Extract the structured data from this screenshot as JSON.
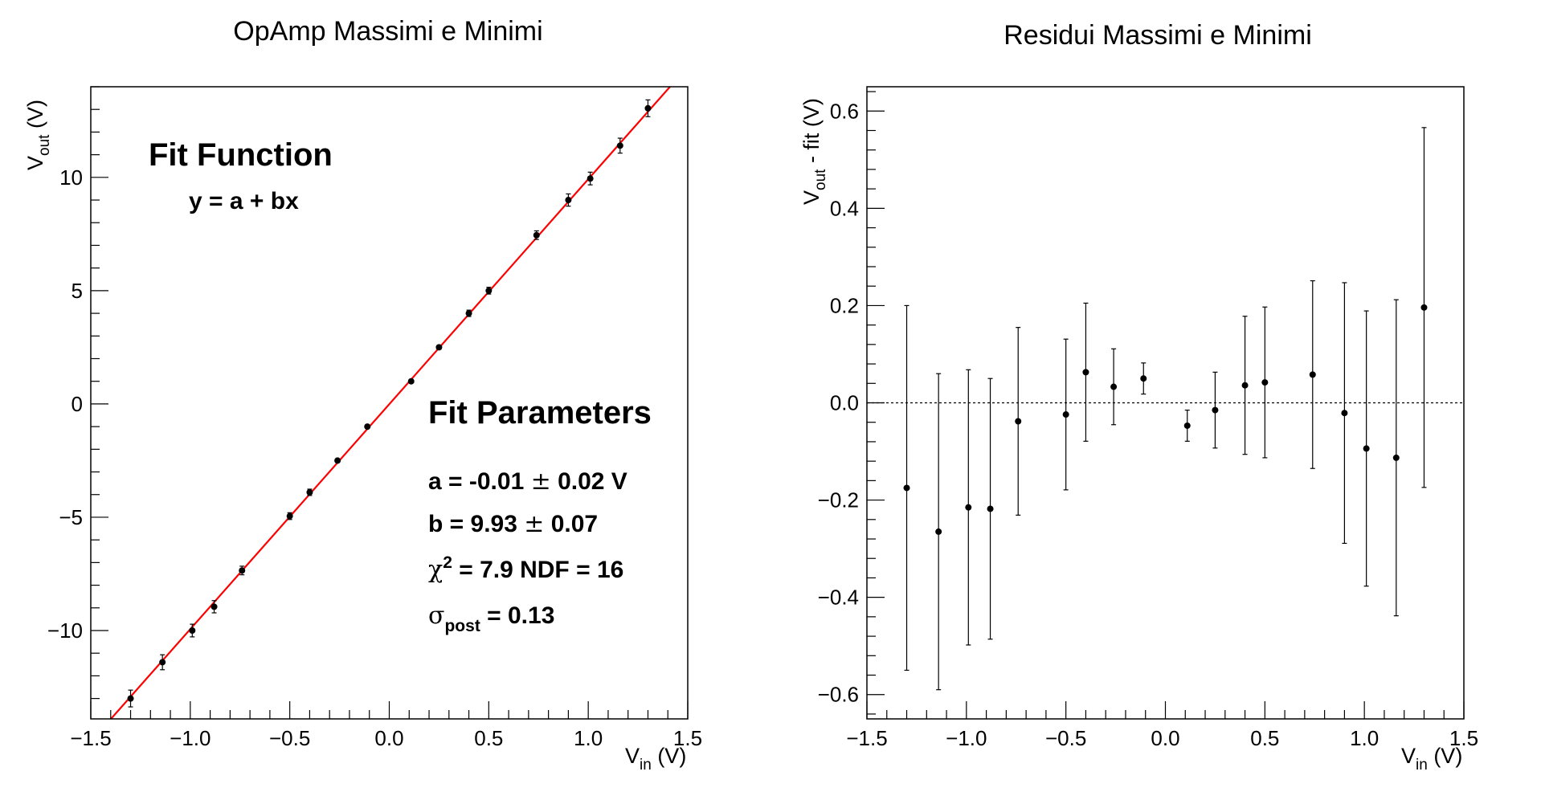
{
  "chart_data": [
    {
      "type": "scatter",
      "title": "OpAmp Massimi e Minimi",
      "xlabel": {
        "main": "V",
        "sub": "in",
        "unit": " (V)"
      },
      "ylabel": {
        "main": "V",
        "sub": "out",
        "unit": " (V)"
      },
      "xlim": [
        -1.5,
        1.5
      ],
      "ylim": [
        -13.9,
        14.0
      ],
      "xticks": [
        -1.5,
        -1.0,
        -0.5,
        0.0,
        0.5,
        1.0,
        1.5
      ],
      "xtick_labels": [
        "−1.5",
        "−1.0",
        "−0.5",
        "0.0",
        "0.5",
        "1.0",
        "1.5"
      ],
      "yticks": [
        -10,
        -5,
        0,
        5,
        10
      ],
      "ytick_labels": [
        "−10",
        "−5",
        "0",
        "5",
        "10"
      ],
      "grid": false,
      "series": [
        {
          "x": [
            -1.3,
            -1.14,
            -0.99,
            -0.88,
            -0.74,
            -0.5,
            -0.4,
            -0.26,
            -0.11,
            0.11,
            0.25,
            0.4,
            0.5,
            0.74,
            0.9,
            1.01,
            1.16,
            1.3
          ],
          "y": [
            -13.0,
            -11.4,
            -10.0,
            -8.95,
            -7.35,
            -4.95,
            -3.9,
            -2.5,
            -1.0,
            1.0,
            2.5,
            4.0,
            5.0,
            7.45,
            9.0,
            9.95,
            11.4,
            13.05
          ],
          "yerr": [
            0.37,
            0.33,
            0.28,
            0.27,
            0.19,
            0.15,
            0.14,
            0.08,
            0.03,
            0.03,
            0.08,
            0.14,
            0.15,
            0.19,
            0.27,
            0.28,
            0.33,
            0.37
          ]
        }
      ],
      "fit_line": {
        "a": -0.01,
        "b": 9.93,
        "color": "#ff0000"
      },
      "annotations": {
        "fit_function_title": "Fit Function",
        "fit_function_formula": "y = a + bx",
        "fit_parameters_title": "Fit Parameters",
        "a_line": {
          "text": "a = -0.01 ",
          "pm": "±",
          "value": " 0.02 V"
        },
        "b_line": {
          "text": "b = 9.93 ",
          "pm": "±",
          "value": " 0.07"
        },
        "chi_line": {
          "sym": "χ",
          "sup": "2",
          "text": " = 7.9   NDF = 16"
        },
        "sigma_line": {
          "sym": "σ",
          "sub": "post",
          "text": " = 0.13"
        }
      }
    },
    {
      "type": "scatter",
      "title": "Residui Massimi e Minimi",
      "xlabel": {
        "main": "V",
        "sub": "in",
        "unit": " (V)"
      },
      "ylabel": {
        "main": "V",
        "sub": "out",
        "unit": " - fit (V)"
      },
      "xlim": [
        -1.5,
        1.5
      ],
      "ylim": [
        -0.65,
        0.65
      ],
      "xticks": [
        -1.5,
        -1.0,
        -0.5,
        0.0,
        0.5,
        1.0,
        1.5
      ],
      "xtick_labels": [
        "−1.5",
        "−1.0",
        "−0.5",
        "0.0",
        "0.5",
        "1.0",
        "1.5"
      ],
      "yticks": [
        -0.6,
        -0.4,
        -0.2,
        0.0,
        0.2,
        0.4,
        0.6
      ],
      "ytick_labels": [
        "−0.6",
        "−0.4",
        "−0.2",
        "0.0",
        "0.2",
        "0.4",
        "0.6"
      ],
      "grid": false,
      "reference_line": {
        "y": 0.0,
        "style": "dotted"
      },
      "series": [
        {
          "x": [
            -1.3,
            -1.14,
            -0.99,
            -0.88,
            -0.74,
            -0.5,
            -0.4,
            -0.26,
            -0.11,
            0.11,
            0.25,
            0.4,
            0.5,
            0.74,
            0.9,
            1.01,
            1.16,
            1.3
          ],
          "y": [
            -0.175,
            -0.265,
            -0.215,
            -0.218,
            -0.038,
            -0.024,
            0.063,
            0.033,
            0.05,
            -0.047,
            -0.015,
            0.036,
            0.042,
            0.058,
            -0.021,
            -0.094,
            -0.113,
            0.196
          ],
          "yerr": [
            0.375,
            0.325,
            0.283,
            0.268,
            0.193,
            0.155,
            0.142,
            0.078,
            0.032,
            0.032,
            0.078,
            0.142,
            0.155,
            0.193,
            0.268,
            0.283,
            0.325,
            0.37
          ]
        }
      ]
    }
  ]
}
